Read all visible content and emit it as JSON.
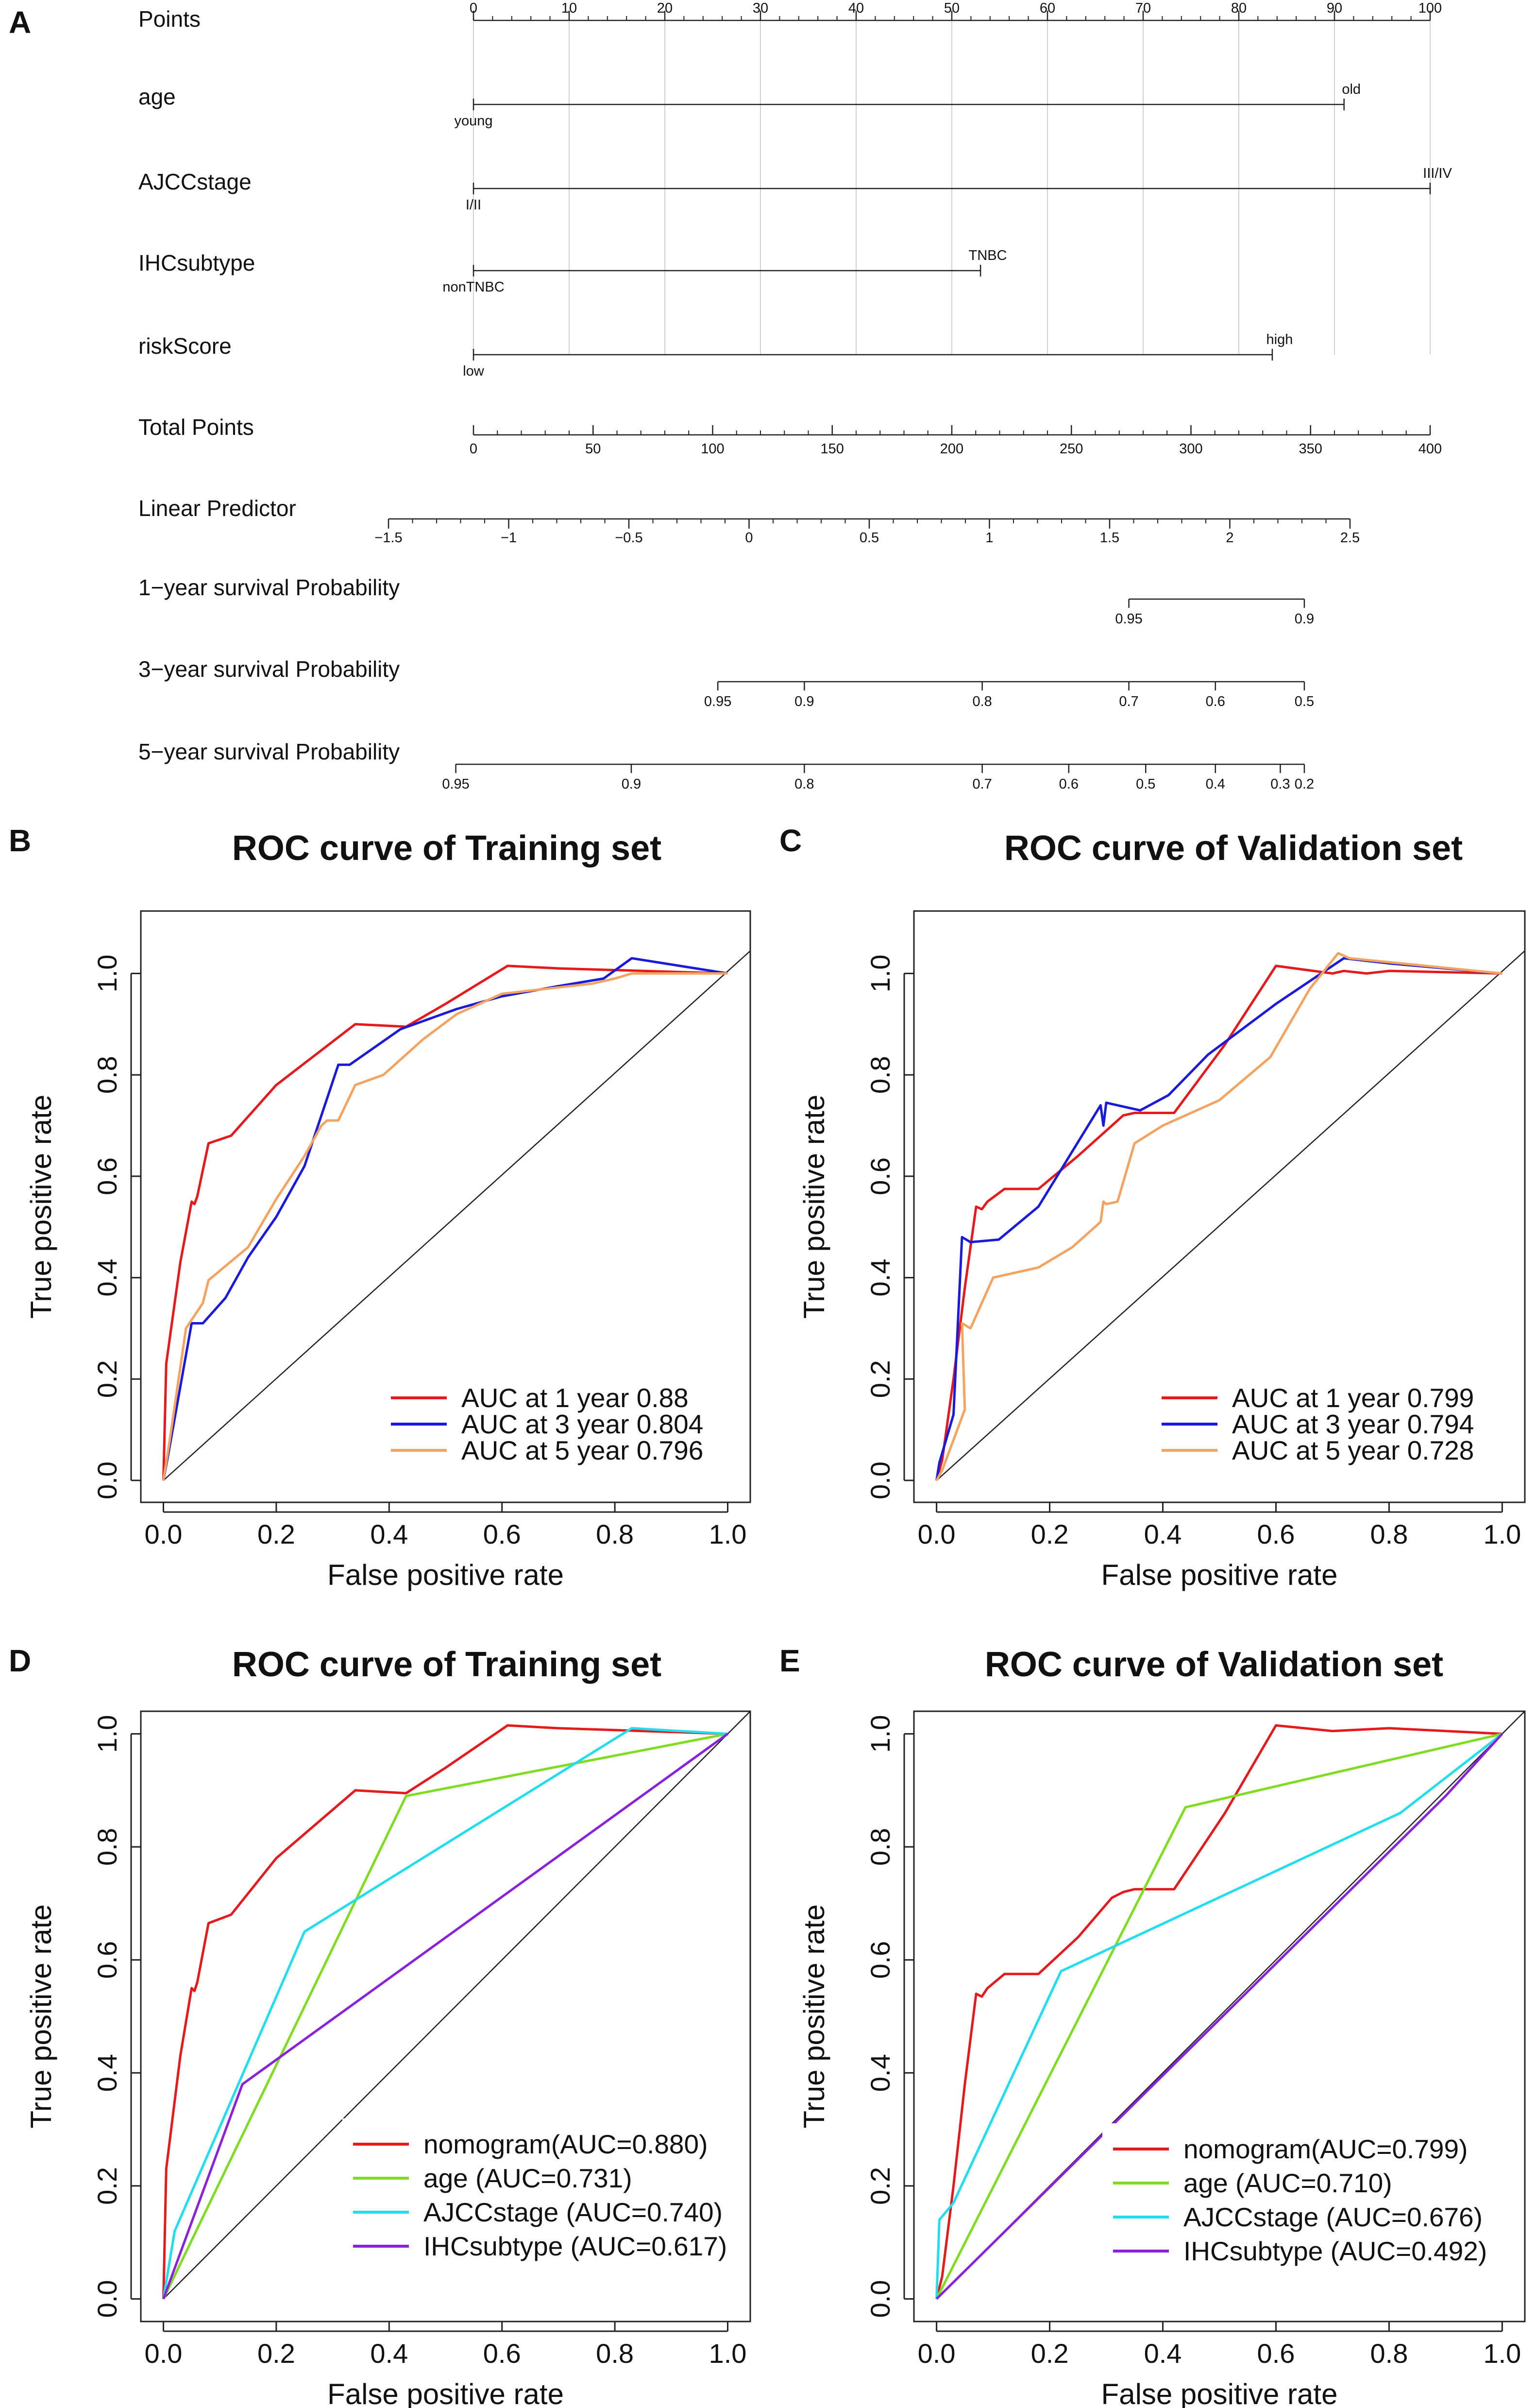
{
  "nomogram": {
    "panel": "A",
    "rows": [
      {
        "id": "points",
        "label": "Points",
        "scale": [
          0,
          100
        ],
        "ticks": [
          0,
          10,
          20,
          30,
          40,
          50,
          60,
          70,
          80,
          90,
          100
        ],
        "tick_labels": [
          "0",
          "10",
          "20",
          "30",
          "40",
          "50",
          "60",
          "70",
          "80",
          "90",
          "100"
        ],
        "minor_step": 2
      },
      {
        "id": "age",
        "label": "age",
        "points_range": [
          0,
          91
        ],
        "low": "young",
        "high": "old",
        "high_above": true
      },
      {
        "id": "ajcc",
        "label": "AJCCstage",
        "points_range": [
          0,
          100
        ],
        "low": "I/II",
        "high": "III/IV",
        "high_above": true
      },
      {
        "id": "ihc",
        "label": "IHCsubtype",
        "points_range": [
          0,
          53
        ],
        "low": "nonTNBC",
        "high": "TNBC",
        "high_above": true
      },
      {
        "id": "risk",
        "label": "riskScore",
        "points_range": [
          0,
          83.5
        ],
        "low": "low",
        "high": "high",
        "high_above": true
      },
      {
        "id": "total",
        "label": "Total Points",
        "scale": [
          0,
          400
        ],
        "ticks": [
          0,
          50,
          100,
          150,
          200,
          250,
          300,
          350,
          400
        ],
        "tick_labels": [
          "0",
          "50",
          "100",
          "150",
          "200",
          "250",
          "300",
          "350",
          "400"
        ],
        "minor_step": 10
      },
      {
        "id": "lp",
        "label": "Linear Predictor",
        "lp_range": [
          -1.5,
          2.5
        ],
        "ticks": [
          -1.5,
          -1,
          -0.5,
          0,
          0.5,
          1,
          1.5,
          2,
          2.5
        ],
        "tick_labels": [
          "−1.5",
          "−1",
          "−0.5",
          "0",
          "0.5",
          "1",
          "1.5",
          "2",
          "2.5"
        ],
        "minor_step": 0.1
      },
      {
        "id": "surv1",
        "label": "1−year survival Probability",
        "lp_ticks": [
          1.58,
          2.31
        ],
        "tick_labels": [
          "0.95",
          "0.9"
        ]
      },
      {
        "id": "surv3",
        "label": "3−year survival Probability",
        "lp_ticks": [
          -0.13,
          0.23,
          0.97,
          1.58,
          1.94,
          2.31
        ],
        "tick_labels": [
          "0.95",
          "0.9",
          "0.8",
          "0.7",
          "0.6",
          "0.5"
        ]
      },
      {
        "id": "surv5",
        "label": "5−year survival Probability",
        "lp_ticks": [
          -1.22,
          -0.49,
          0.23,
          0.97,
          1.33,
          1.65,
          1.94,
          2.21,
          2.31
        ],
        "tick_labels": [
          "0.95",
          "0.9",
          "0.8",
          "0.7",
          "0.6",
          "0.5",
          "0.4",
          "0.3",
          "0.2"
        ]
      }
    ]
  },
  "chart_data": [
    {
      "panel": "B",
      "type": "line",
      "title": "ROC curve of Training set",
      "xlabel": "False positive rate",
      "ylabel": "True positive rate",
      "xlim": [
        0,
        1
      ],
      "ylim": [
        0,
        1.08
      ],
      "xticks": [
        0,
        0.2,
        0.4,
        0.6,
        0.8,
        1
      ],
      "xtick_labels": [
        "0.0",
        "0.2",
        "0.4",
        "0.6",
        "0.8",
        "1.0"
      ],
      "yticks": [
        0,
        0.2,
        0.4,
        0.6,
        0.8,
        1
      ],
      "ytick_labels": [
        "0.0",
        "0.2",
        "0.4",
        "0.6",
        "0.8",
        "1.0"
      ],
      "legend_position": "bottom-right",
      "series": [
        {
          "name": "AUC at 1 year 0.88",
          "color": "#e41a1c",
          "points": [
            [
              0,
              0
            ],
            [
              0.005,
              0.23
            ],
            [
              0.03,
              0.43
            ],
            [
              0.05,
              0.55
            ],
            [
              0.055,
              0.545
            ],
            [
              0.06,
              0.56
            ],
            [
              0.08,
              0.665
            ],
            [
              0.12,
              0.68
            ],
            [
              0.2,
              0.78
            ],
            [
              0.34,
              0.9
            ],
            [
              0.43,
              0.895
            ],
            [
              0.5,
              0.94
            ],
            [
              0.61,
              1.015
            ],
            [
              0.7,
              1.01
            ],
            [
              0.85,
              1.005
            ],
            [
              1,
              1
            ]
          ]
        },
        {
          "name": "AUC at 3 year 0.804",
          "color": "#1a1adc",
          "points": [
            [
              0,
              0
            ],
            [
              0.01,
              0.06
            ],
            [
              0.05,
              0.31
            ],
            [
              0.07,
              0.31
            ],
            [
              0.11,
              0.36
            ],
            [
              0.15,
              0.44
            ],
            [
              0.2,
              0.52
            ],
            [
              0.25,
              0.62
            ],
            [
              0.31,
              0.82
            ],
            [
              0.33,
              0.82
            ],
            [
              0.42,
              0.89
            ],
            [
              0.52,
              0.93
            ],
            [
              0.6,
              0.955
            ],
            [
              0.7,
              0.975
            ],
            [
              0.78,
              0.99
            ],
            [
              0.83,
              1.03
            ],
            [
              1,
              1
            ]
          ]
        },
        {
          "name": "AUC at 5 year 0.796",
          "color": "#f4a460",
          "points": [
            [
              0,
              0
            ],
            [
              0.01,
              0.07
            ],
            [
              0.04,
              0.3
            ],
            [
              0.07,
              0.35
            ],
            [
              0.08,
              0.395
            ],
            [
              0.15,
              0.46
            ],
            [
              0.2,
              0.555
            ],
            [
              0.25,
              0.64
            ],
            [
              0.28,
              0.7
            ],
            [
              0.29,
              0.71
            ],
            [
              0.31,
              0.71
            ],
            [
              0.34,
              0.78
            ],
            [
              0.39,
              0.8
            ],
            [
              0.46,
              0.87
            ],
            [
              0.52,
              0.92
            ],
            [
              0.6,
              0.96
            ],
            [
              0.76,
              0.98
            ],
            [
              0.8,
              0.99
            ],
            [
              0.83,
              1.0
            ],
            [
              1,
              1
            ]
          ]
        }
      ]
    },
    {
      "panel": "C",
      "type": "line",
      "title": "ROC curve of Validation set",
      "xlabel": "False positive rate",
      "ylabel": "True positive rate",
      "xlim": [
        0,
        1
      ],
      "ylim": [
        0,
        1.08
      ],
      "xticks": [
        0,
        0.2,
        0.4,
        0.6,
        0.8,
        1
      ],
      "xtick_labels": [
        "0.0",
        "0.2",
        "0.4",
        "0.6",
        "0.8",
        "1.0"
      ],
      "yticks": [
        0,
        0.2,
        0.4,
        0.6,
        0.8,
        1
      ],
      "ytick_labels": [
        "0.0",
        "0.2",
        "0.4",
        "0.6",
        "0.8",
        "1.0"
      ],
      "legend_position": "bottom-right",
      "series": [
        {
          "name": "AUC at 1 year 0.799",
          "color": "#e41a1c",
          "points": [
            [
              0,
              0
            ],
            [
              0.01,
              0.04
            ],
            [
              0.03,
              0.2
            ],
            [
              0.05,
              0.38
            ],
            [
              0.07,
              0.54
            ],
            [
              0.08,
              0.535
            ],
            [
              0.09,
              0.55
            ],
            [
              0.12,
              0.575
            ],
            [
              0.18,
              0.575
            ],
            [
              0.25,
              0.64
            ],
            [
              0.31,
              0.7
            ],
            [
              0.33,
              0.72
            ],
            [
              0.35,
              0.725
            ],
            [
              0.42,
              0.725
            ],
            [
              0.51,
              0.86
            ],
            [
              0.6,
              1.015
            ],
            [
              0.7,
              1.0
            ],
            [
              0.72,
              1.005
            ],
            [
              0.76,
              1.0
            ],
            [
              0.8,
              1.005
            ],
            [
              1,
              1
            ]
          ]
        },
        {
          "name": "AUC at 3 year 0.794",
          "color": "#1a1adc",
          "points": [
            [
              0,
              0
            ],
            [
              0.005,
              0.035
            ],
            [
              0.03,
              0.13
            ],
            [
              0.045,
              0.48
            ],
            [
              0.06,
              0.47
            ],
            [
              0.11,
              0.475
            ],
            [
              0.18,
              0.54
            ],
            [
              0.29,
              0.74
            ],
            [
              0.295,
              0.7
            ],
            [
              0.3,
              0.745
            ],
            [
              0.36,
              0.73
            ],
            [
              0.41,
              0.76
            ],
            [
              0.48,
              0.84
            ],
            [
              0.6,
              0.94
            ],
            [
              0.72,
              1.03
            ],
            [
              0.8,
              1.02
            ],
            [
              1,
              1
            ]
          ]
        },
        {
          "name": "AUC at 5 year 0.728",
          "color": "#f4a460",
          "points": [
            [
              0,
              0
            ],
            [
              0.01,
              0.02
            ],
            [
              0.04,
              0.11
            ],
            [
              0.05,
              0.14
            ],
            [
              0.045,
              0.31
            ],
            [
              0.06,
              0.3
            ],
            [
              0.1,
              0.4
            ],
            [
              0.18,
              0.42
            ],
            [
              0.24,
              0.46
            ],
            [
              0.29,
              0.51
            ],
            [
              0.295,
              0.55
            ],
            [
              0.3,
              0.545
            ],
            [
              0.32,
              0.55
            ],
            [
              0.35,
              0.665
            ],
            [
              0.4,
              0.7
            ],
            [
              0.5,
              0.75
            ],
            [
              0.59,
              0.835
            ],
            [
              0.66,
              0.97
            ],
            [
              0.71,
              1.04
            ],
            [
              0.73,
              1.03
            ],
            [
              1,
              1
            ]
          ]
        }
      ]
    },
    {
      "panel": "D",
      "type": "line",
      "title": "ROC curve of Training set",
      "xlabel": "False positive rate",
      "ylabel": "True positive rate",
      "xlim": [
        0,
        1
      ],
      "ylim": [
        0,
        1.0
      ],
      "xticks": [
        0,
        0.2,
        0.4,
        0.6,
        0.8,
        1
      ],
      "xtick_labels": [
        "0.0",
        "0.2",
        "0.4",
        "0.6",
        "0.8",
        "1.0"
      ],
      "yticks": [
        0,
        0.2,
        0.4,
        0.6,
        0.8,
        1
      ],
      "ytick_labels": [
        "0.0",
        "0.2",
        "0.4",
        "0.6",
        "0.8",
        "1.0"
      ],
      "legend_position": "bottom-right",
      "series": [
        {
          "name": "nomogram(AUC=0.880)",
          "color": "#e41a1c",
          "points": [
            [
              0,
              0
            ],
            [
              0.005,
              0.23
            ],
            [
              0.03,
              0.43
            ],
            [
              0.05,
              0.55
            ],
            [
              0.055,
              0.545
            ],
            [
              0.06,
              0.56
            ],
            [
              0.08,
              0.665
            ],
            [
              0.12,
              0.68
            ],
            [
              0.2,
              0.78
            ],
            [
              0.34,
              0.9
            ],
            [
              0.43,
              0.895
            ],
            [
              0.5,
              0.94
            ],
            [
              0.61,
              1.015
            ],
            [
              0.7,
              1.01
            ],
            [
              0.85,
              1.005
            ],
            [
              1,
              1
            ]
          ]
        },
        {
          "name": "age (AUC=0.731)",
          "color": "#7fdc22",
          "points": [
            [
              0,
              0
            ],
            [
              0.43,
              0.89
            ],
            [
              1,
              1
            ]
          ]
        },
        {
          "name": "AJCCstage (AUC=0.740)",
          "color": "#22dcf0",
          "points": [
            [
              0,
              0
            ],
            [
              0.02,
              0.12
            ],
            [
              0.25,
              0.65
            ],
            [
              0.83,
              1.01
            ],
            [
              1,
              1
            ]
          ]
        },
        {
          "name": "IHCsubtype (AUC=0.617)",
          "color": "#8a22dc",
          "points": [
            [
              0,
              0
            ],
            [
              0.14,
              0.38
            ],
            [
              1,
              1
            ]
          ]
        }
      ]
    },
    {
      "panel": "E",
      "type": "line",
      "title": "ROC curve of Validation set",
      "xlabel": "False positive rate",
      "ylabel": "True positive rate",
      "xlim": [
        0,
        1
      ],
      "ylim": [
        0,
        1.0
      ],
      "xticks": [
        0,
        0.2,
        0.4,
        0.6,
        0.8,
        1
      ],
      "xtick_labels": [
        "0.0",
        "0.2",
        "0.4",
        "0.6",
        "0.8",
        "1.0"
      ],
      "yticks": [
        0,
        0.2,
        0.4,
        0.6,
        0.8,
        1
      ],
      "ytick_labels": [
        "0.0",
        "0.2",
        "0.4",
        "0.6",
        "0.8",
        "1.0"
      ],
      "legend_position": "bottom-right",
      "series": [
        {
          "name": "nomogram(AUC=0.799)",
          "color": "#e41a1c",
          "points": [
            [
              0,
              0
            ],
            [
              0.01,
              0.04
            ],
            [
              0.03,
              0.2
            ],
            [
              0.05,
              0.38
            ],
            [
              0.07,
              0.54
            ],
            [
              0.08,
              0.535
            ],
            [
              0.09,
              0.55
            ],
            [
              0.12,
              0.575
            ],
            [
              0.18,
              0.575
            ],
            [
              0.25,
              0.64
            ],
            [
              0.31,
              0.71
            ],
            [
              0.33,
              0.72
            ],
            [
              0.35,
              0.725
            ],
            [
              0.42,
              0.725
            ],
            [
              0.51,
              0.86
            ],
            [
              0.6,
              1.015
            ],
            [
              0.7,
              1.005
            ],
            [
              0.8,
              1.01
            ],
            [
              1,
              1
            ]
          ]
        },
        {
          "name": "age (AUC=0.710)",
          "color": "#7fdc22",
          "points": [
            [
              0,
              0
            ],
            [
              0.44,
              0.87
            ],
            [
              1,
              1
            ]
          ]
        },
        {
          "name": "AJCCstage (AUC=0.676)",
          "color": "#22dcf0",
          "points": [
            [
              0,
              0
            ],
            [
              0.005,
              0.14
            ],
            [
              0.03,
              0.17
            ],
            [
              0.22,
              0.58
            ],
            [
              0.82,
              0.86
            ],
            [
              1,
              1
            ]
          ]
        },
        {
          "name": "IHCsubtype (AUC=0.492)",
          "color": "#8a22dc",
          "points": [
            [
              0,
              0
            ],
            [
              0.9,
              0.89
            ],
            [
              1,
              1
            ]
          ]
        }
      ]
    }
  ]
}
